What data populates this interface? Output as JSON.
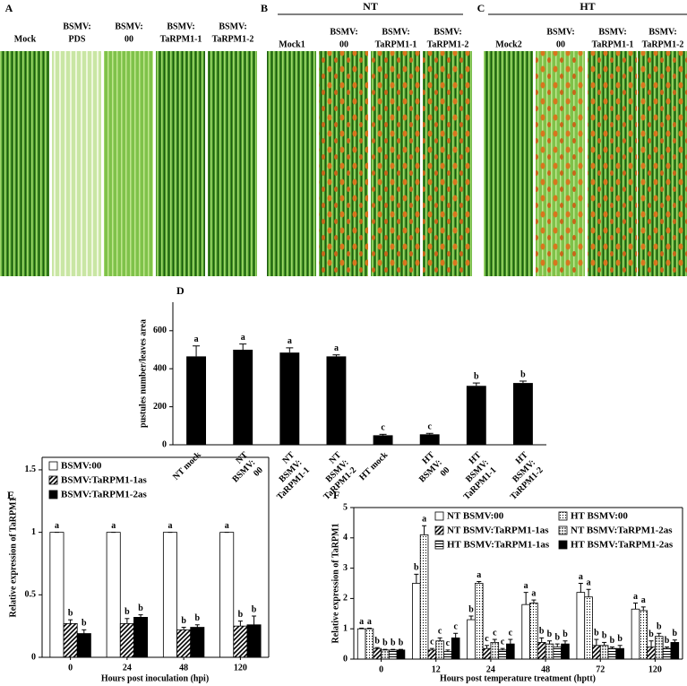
{
  "figure": {
    "panels": [
      {
        "letter": "A",
        "photos": [
          [
            "Mock"
          ],
          [
            "BSMV:",
            "PDS"
          ],
          [
            "BSMV:",
            "00"
          ],
          [
            "BSMV:",
            "TaRPM1-1"
          ],
          [
            "BSMV:",
            "TaRPM1-2"
          ]
        ]
      },
      {
        "letter": "B",
        "group": "NT",
        "photos": [
          [
            "Mock1"
          ],
          [
            "BSMV:",
            "00"
          ],
          [
            "BSMV:",
            "TaRPM1-1"
          ],
          [
            "BSMV:",
            "TaRPM1-2"
          ]
        ]
      },
      {
        "letter": "C",
        "group": "HT",
        "photos": [
          [
            "Mock2"
          ],
          [
            "BSMV:",
            "00"
          ],
          [
            "BSMV:",
            "TaRPM1-1"
          ],
          [
            "BSMV:",
            "TaRPM1-2"
          ]
        ]
      }
    ]
  },
  "chart_data": [
    {
      "type": "bar",
      "panel_label": "D",
      "y_label": "pustules number/leaves area",
      "categories": [
        [
          "NT mock"
        ],
        [
          "NT",
          "BSMV:",
          "00"
        ],
        [
          "NT",
          "BSMV:",
          "TaRPM1-1"
        ],
        [
          "NT",
          "BSMV:",
          "TaRPM1-2"
        ],
        [
          "HT mock"
        ],
        [
          "HT",
          "BSMV:",
          "00"
        ],
        [
          "HT",
          "BSMV:",
          "TaRPM1-1"
        ],
        [
          "HT",
          "BSMV:",
          "TaRPM1-2"
        ]
      ],
      "values": [
        465,
        500,
        485,
        465,
        50,
        55,
        310,
        325
      ],
      "errors": [
        55,
        30,
        25,
        8,
        5,
        5,
        15,
        10
      ],
      "letters": [
        "a",
        "a",
        "a",
        "a",
        "c",
        "c",
        "b",
        "b"
      ],
      "color": "#000000",
      "ylim": [
        0,
        750
      ],
      "yticks": [
        0,
        200,
        400,
        600
      ]
    },
    {
      "type": "grouped_bar",
      "panel_label": "E",
      "y_label": "Relative expression of TaRPM1",
      "x_label": "Hours post inoculation (hpi)",
      "categories": [
        "0",
        "24",
        "48",
        "120"
      ],
      "legend": "upper left",
      "legend_columns": 1,
      "series": [
        {
          "name": "BSMV:00",
          "color": "#ffffff",
          "fill_style": "white",
          "values": [
            1,
            1,
            1,
            1
          ],
          "errors": [
            0,
            0,
            0,
            0
          ],
          "letters": [
            "a",
            "a",
            "a",
            "a"
          ]
        },
        {
          "name": "BSMV:TaRPM1-1as",
          "color": "#000000",
          "fill_style": "diagonal",
          "values": [
            0.27,
            0.27,
            0.22,
            0.25
          ],
          "errors": [
            0.03,
            0.04,
            0.02,
            0.04
          ],
          "letters": [
            "b",
            "b",
            "b",
            "b"
          ]
        },
        {
          "name": "BSMV:TaRPM1-2as",
          "color": "#000000",
          "fill_style": "solid",
          "values": [
            0.19,
            0.32,
            0.24,
            0.26
          ],
          "errors": [
            0.03,
            0.02,
            0.02,
            0.07
          ],
          "letters": [
            "b",
            "b",
            "b",
            "b"
          ]
        }
      ],
      "ylim": [
        0,
        1.6
      ],
      "yticks": [
        0,
        0.5,
        1,
        1.5
      ]
    },
    {
      "type": "grouped_bar",
      "panel_label": "F",
      "y_label": "Relative expression of TaRPM1",
      "x_label": "Hours post temperature treatment (hptt)",
      "categories": [
        "0",
        "12",
        "24",
        "48",
        "72",
        "120"
      ],
      "legend": "upper right",
      "legend_columns": 2,
      "series": [
        {
          "name": "NT BSMV:00",
          "color": "#ffffff",
          "fill_style": "white",
          "values": [
            1,
            2.5,
            1.3,
            1.8,
            2.2,
            1.65
          ],
          "errors": [
            0.02,
            0.3,
            0.12,
            0.4,
            0.3,
            0.2
          ],
          "letters": [
            "a",
            "b",
            "b",
            "a",
            "a",
            "a"
          ]
        },
        {
          "name": "HT BSMV:00",
          "color": "#000000",
          "fill_style": "dots",
          "values": [
            1,
            4.1,
            2.5,
            1.85,
            2.05,
            1.6
          ],
          "errors": [
            0.02,
            0.3,
            0.06,
            0.1,
            0.25,
            0.12
          ],
          "letters": [
            "a",
            "a",
            "a",
            "a",
            "a",
            "a"
          ]
        },
        {
          "name": "NT BSMV:TaRPM1-1as",
          "color": "#000000",
          "fill_style": "diagonal",
          "values": [
            0.35,
            0.3,
            0.35,
            0.55,
            0.45,
            0.4
          ],
          "errors": [
            0.03,
            0.05,
            0.1,
            0.15,
            0.2,
            0.2
          ],
          "letters": [
            "b",
            "c",
            "c",
            "b",
            "b",
            "b"
          ]
        },
        {
          "name": "NT BSMV:TaRPM1-2as",
          "color": "#808080",
          "fill_style": "grid",
          "values": [
            0.3,
            0.6,
            0.55,
            0.5,
            0.45,
            0.75
          ],
          "errors": [
            0.02,
            0.1,
            0.1,
            0.1,
            0.1,
            0.1
          ],
          "letters": [
            "b",
            "c",
            "c",
            "b",
            "b",
            "b"
          ]
        },
        {
          "name": "HT BSMV:TaRPM1-1as",
          "color": "#000000",
          "fill_style": "horizontal",
          "values": [
            0.3,
            0.25,
            0.3,
            0.4,
            0.35,
            0.35
          ],
          "errors": [
            0.02,
            0.05,
            0.05,
            0.1,
            0.05,
            0.05
          ],
          "letters": [
            "b",
            "c",
            "c",
            "b",
            "b",
            "b"
          ]
        },
        {
          "name": "HT BSMV:TaRPM1-2as",
          "color": "#000000",
          "fill_style": "solid",
          "values": [
            0.3,
            0.7,
            0.5,
            0.5,
            0.35,
            0.55
          ],
          "errors": [
            0.02,
            0.15,
            0.15,
            0.1,
            0.1,
            0.08
          ],
          "letters": [
            "b",
            "c",
            "c",
            "b",
            "b",
            "b"
          ]
        }
      ],
      "ylim": [
        0,
        5
      ],
      "yticks": [
        0,
        1,
        2,
        3,
        4,
        5
      ]
    }
  ]
}
